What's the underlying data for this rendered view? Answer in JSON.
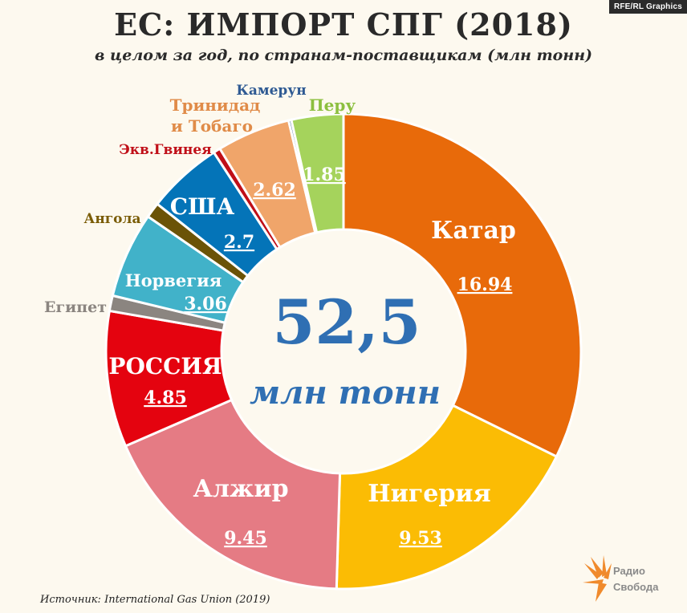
{
  "credit": "RFE/RL Graphics",
  "title": "ЕС: ИМПОРТ СПГ (2018)",
  "subtitle": "в целом за год, по странам-поставщикам (млн тонн)",
  "center": {
    "value": "52,5",
    "unit": "млн тонн"
  },
  "source": "Источник: International Gas Union (2019)",
  "logo": {
    "line1": "Радио",
    "line2": "Свобода"
  },
  "chart_data": {
    "type": "pie",
    "total": 52.5,
    "series": [
      {
        "name": "Катар",
        "value": 16.94,
        "value_label": "16.94",
        "color": "#e86a0a"
      },
      {
        "name": "Нигерия",
        "value": 9.53,
        "value_label": "9.53",
        "color": "#fbbc04"
      },
      {
        "name": "Алжир",
        "value": 9.45,
        "value_label": "9.45",
        "color": "#e57b84"
      },
      {
        "name": "РОССИЯ",
        "value": 4.85,
        "value_label": "4.85",
        "color": "#e4030f"
      },
      {
        "name": "Египет",
        "value": 0.55,
        "value_label": "",
        "color": "#8b8580"
      },
      {
        "name": "Норвегия",
        "value": 3.06,
        "value_label": "3.06",
        "color": "#41b2c9"
      },
      {
        "name": "Ангола",
        "value": 0.55,
        "value_label": "",
        "color": "#6b5307"
      },
      {
        "name": "США",
        "value": 2.7,
        "value_label": "2.7",
        "color": "#0474b8"
      },
      {
        "name": "Экв.Гвинея",
        "value": 0.25,
        "value_label": "",
        "color": "#c00f18"
      },
      {
        "name": "Тринидад и Тобаго",
        "value": 2.62,
        "value_label": "2.62",
        "color": "#f0a56a"
      },
      {
        "name": "Камерун",
        "value": 0.1,
        "value_label": "",
        "color": "#2f5a93"
      },
      {
        "name": "Перу",
        "value": 1.85,
        "value_label": "1.85",
        "color": "#a5d35c"
      }
    ]
  }
}
